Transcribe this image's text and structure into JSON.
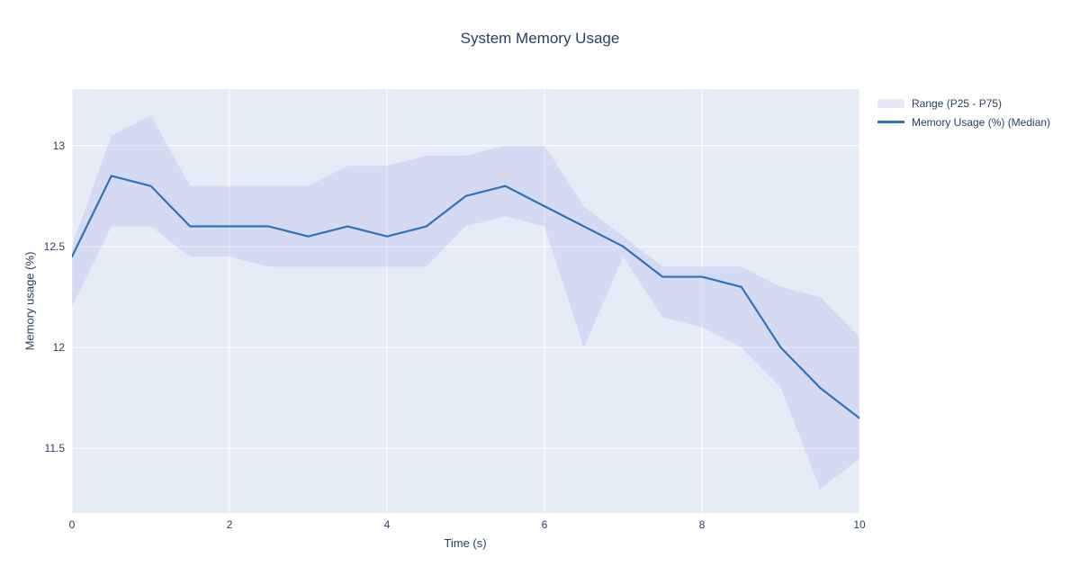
{
  "title": "System Memory Usage",
  "axes": {
    "x_label": "Time (s)",
    "y_label": "Memory usage (%)",
    "x_ticks": [
      0,
      2,
      4,
      6,
      8,
      10
    ],
    "y_ticks": [
      11.5,
      12,
      12.5,
      13
    ]
  },
  "legend": {
    "items": [
      {
        "label": "Range (P25 - P75)",
        "type": "band"
      },
      {
        "label": "Memory Usage (%) (Median)",
        "type": "line"
      }
    ]
  },
  "colors": {
    "plot_bg": "#e5ecf6",
    "grid": "#ffffff",
    "band_fill": "rgba(161,164,226,0.25)",
    "legend_band_fill": "#e7e8f8",
    "line": "#2e74b5",
    "text": "#2a3f5f"
  },
  "chart_data": {
    "type": "line",
    "title": "System Memory Usage",
    "xlabel": "Time (s)",
    "ylabel": "Memory usage (%)",
    "x": [
      0,
      0.5,
      1,
      1.5,
      2,
      2.5,
      3,
      3.5,
      4,
      4.5,
      5,
      5.5,
      6,
      6.5,
      7,
      7.5,
      8,
      8.5,
      9,
      9.5,
      10
    ],
    "series": [
      {
        "name": "Memory Usage (%) (Median)",
        "role": "median",
        "values": [
          12.45,
          12.85,
          12.8,
          12.6,
          12.6,
          12.6,
          12.55,
          12.6,
          12.55,
          12.6,
          12.75,
          12.8,
          12.7,
          12.6,
          12.5,
          12.35,
          12.35,
          12.3,
          12.0,
          11.8,
          11.65
        ]
      },
      {
        "name": "P75 (band upper)",
        "role": "band_upper",
        "values": [
          12.5,
          13.05,
          13.15,
          12.8,
          12.8,
          12.8,
          12.8,
          12.9,
          12.9,
          12.95,
          12.95,
          13.0,
          13.0,
          12.7,
          12.55,
          12.4,
          12.4,
          12.4,
          12.3,
          12.25,
          12.05
        ]
      },
      {
        "name": "P25 (band lower)",
        "role": "band_lower",
        "values": [
          12.2,
          12.6,
          12.6,
          12.45,
          12.45,
          12.4,
          12.4,
          12.4,
          12.4,
          12.4,
          12.6,
          12.65,
          12.6,
          12.0,
          12.45,
          12.15,
          12.1,
          12.0,
          11.8,
          11.3,
          11.45
        ]
      }
    ],
    "x_range": [
      0,
      10
    ],
    "y_range": [
      11.18,
      13.28
    ],
    "grid": true,
    "legend_position": "top-right"
  }
}
